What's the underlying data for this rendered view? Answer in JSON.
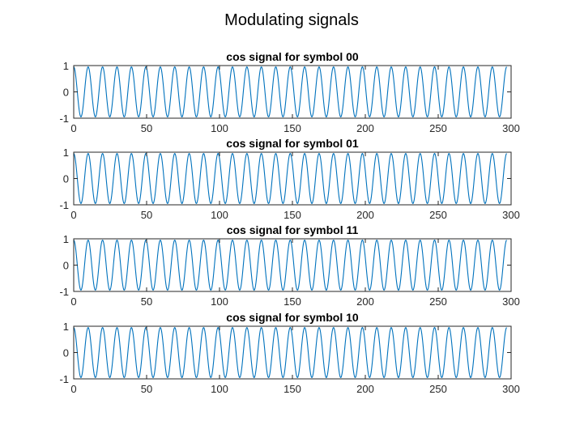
{
  "figure": {
    "title": "Modulating signals"
  },
  "chart_data": [
    {
      "type": "line",
      "title": "cos signal for symbol 00",
      "xlabel": "",
      "ylabel": "",
      "xlim": [
        0,
        300
      ],
      "ylim": [
        -1,
        1
      ],
      "xticks": [
        0,
        50,
        100,
        150,
        200,
        250,
        300
      ],
      "yticks": [
        -1,
        0,
        1
      ],
      "grid": false,
      "line_color": "#0072BD",
      "signal": {
        "function": "cos",
        "amplitude": 0.95,
        "period": 9.9,
        "phase": 0,
        "x_start": 0,
        "x_end": 297
      }
    },
    {
      "type": "line",
      "title": "cos signal for symbol 01",
      "xlabel": "",
      "ylabel": "",
      "xlim": [
        0,
        300
      ],
      "ylim": [
        -1,
        1
      ],
      "xticks": [
        0,
        50,
        100,
        150,
        200,
        250,
        300
      ],
      "yticks": [
        -1,
        0,
        1
      ],
      "grid": false,
      "line_color": "#0072BD",
      "signal": {
        "function": "cos",
        "amplitude": 0.95,
        "period": 9.9,
        "phase": 0,
        "x_start": 0,
        "x_end": 297
      }
    },
    {
      "type": "line",
      "title": "cos signal for symbol 11",
      "xlabel": "",
      "ylabel": "",
      "xlim": [
        0,
        300
      ],
      "ylim": [
        -1,
        1
      ],
      "xticks": [
        0,
        50,
        100,
        150,
        200,
        250,
        300
      ],
      "yticks": [
        -1,
        0,
        1
      ],
      "grid": false,
      "line_color": "#0072BD",
      "signal": {
        "function": "cos",
        "amplitude": 0.95,
        "period": 9.9,
        "phase": 0,
        "x_start": 0,
        "x_end": 297
      }
    },
    {
      "type": "line",
      "title": "cos signal for symbol 10",
      "xlabel": "",
      "ylabel": "",
      "xlim": [
        0,
        300
      ],
      "ylim": [
        -1,
        1
      ],
      "xticks": [
        0,
        50,
        100,
        150,
        200,
        250,
        300
      ],
      "yticks": [
        -1,
        0,
        1
      ],
      "grid": false,
      "line_color": "#0072BD",
      "signal": {
        "function": "cos",
        "amplitude": 0.95,
        "period": 9.9,
        "phase": 0,
        "x_start": 0,
        "x_end": 297
      }
    }
  ]
}
